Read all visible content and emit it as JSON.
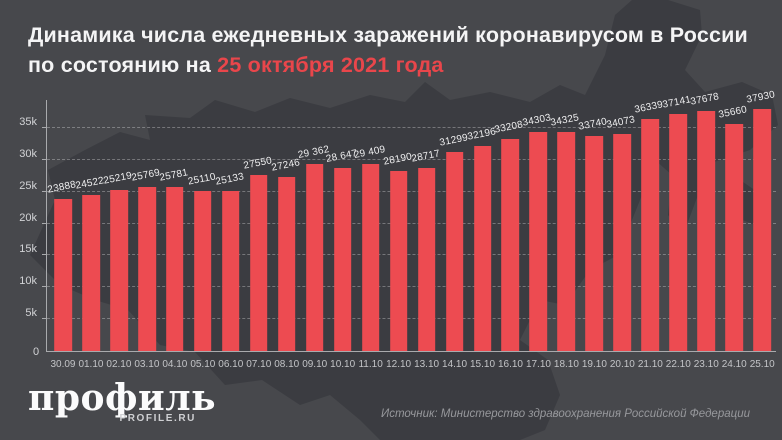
{
  "title": {
    "prefix": "Динамика числа ежедневных заражений коронавирусом в России по состоянию на ",
    "accent": "25 октября 2021 года"
  },
  "chart_data": {
    "type": "bar",
    "title": "Динамика числа ежедневных заражений коронавирусом в России по состоянию на 25 октября 2021 года",
    "categories": [
      "30.09",
      "01.10",
      "02.10",
      "03.10",
      "04.10",
      "05.10",
      "06.10",
      "07.10",
      "08.10",
      "09.10",
      "10.10",
      "11.10",
      "12.10",
      "13.10",
      "14.10",
      "15.10",
      "16.10",
      "17.10",
      "18.10",
      "19.10",
      "20.10",
      "21.10",
      "22.10",
      "23.10",
      "24.10",
      "25.10"
    ],
    "values": [
      23888,
      24522,
      25219,
      25769,
      25781,
      25110,
      25133,
      27550,
      27246,
      29362,
      28647,
      29409,
      28190,
      28717,
      31299,
      32196,
      33208,
      34303,
      34325,
      33740,
      34073,
      36339,
      37141,
      37678,
      35660,
      37930
    ],
    "bar_labels": [
      "23888",
      "24522",
      "25219",
      "25769",
      "25781",
      "25110",
      "25133",
      "27550",
      "27246",
      "29 362",
      "28 647",
      "29 409",
      "28190",
      "28717",
      "31299",
      "32196",
      "33208",
      "34303",
      "34325",
      "33740",
      "34073",
      "36339",
      "37141",
      "37678",
      "35660",
      "37930"
    ],
    "ylim": [
      0,
      35000
    ],
    "ytick_step": 5000,
    "yticks": [
      "5k",
      "10k",
      "15k",
      "20k",
      "25k",
      "30k",
      "35k"
    ],
    "zero_label": "0",
    "grid": "horizontal-dashed",
    "legend": "none",
    "xlabel": "",
    "ylabel": ""
  },
  "footer": {
    "logo_wordmark": "профиль",
    "logo_subtitle": "PROFILE.RU",
    "source": "Источник: Министерство здравоохранения Российской Федерации"
  },
  "colors": {
    "background": "#47484c",
    "map_silhouette": "#3b3c41",
    "bar": "#ed4b51",
    "title_accent": "#e9464b",
    "grid_line": "rgba(255,255,255,0.30)",
    "axis_line": "#a9aaad"
  }
}
